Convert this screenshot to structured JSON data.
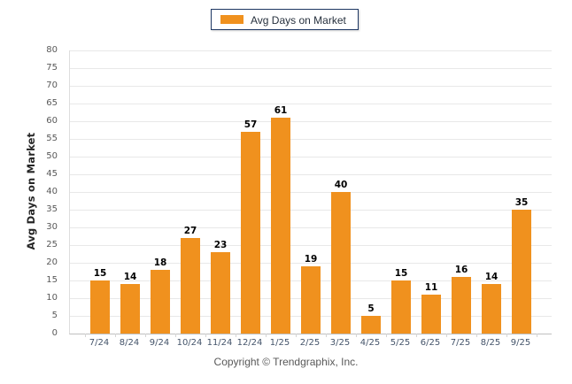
{
  "legend": {
    "label": "Avg Days on Market"
  },
  "y_axis": {
    "title": "Avg Days on Market"
  },
  "footer": {
    "copyright": "Copyright © Trendgraphix, Inc."
  },
  "colors": {
    "bar": "#F0911E",
    "legend-border": "#1F3864",
    "grid": "#E8E8E8",
    "baseline": "#BFBFBF",
    "x-label": "#44546A",
    "y-label": "#595959",
    "data-label": "#000000",
    "y-title": "#262626",
    "footer": "#595959"
  },
  "chart_data": {
    "type": "bar",
    "title": "",
    "xlabel": "",
    "ylabel": "Avg Days on Market",
    "categories": [
      "7/24",
      "8/24",
      "9/24",
      "10/24",
      "11/24",
      "12/24",
      "1/25",
      "2/25",
      "3/25",
      "4/25",
      "5/25",
      "6/25",
      "7/25",
      "8/25",
      "9/25"
    ],
    "values": [
      15,
      14,
      18,
      27,
      23,
      57,
      61,
      19,
      40,
      5,
      15,
      11,
      16,
      14,
      35
    ],
    "ylim": [
      0,
      80
    ],
    "ytick_step": 5,
    "grid": true,
    "legend_entries": [
      "Avg Days on Market"
    ],
    "legend_position": "top-center",
    "bar_color": "#F0911E",
    "data_labels_shown": true
  }
}
